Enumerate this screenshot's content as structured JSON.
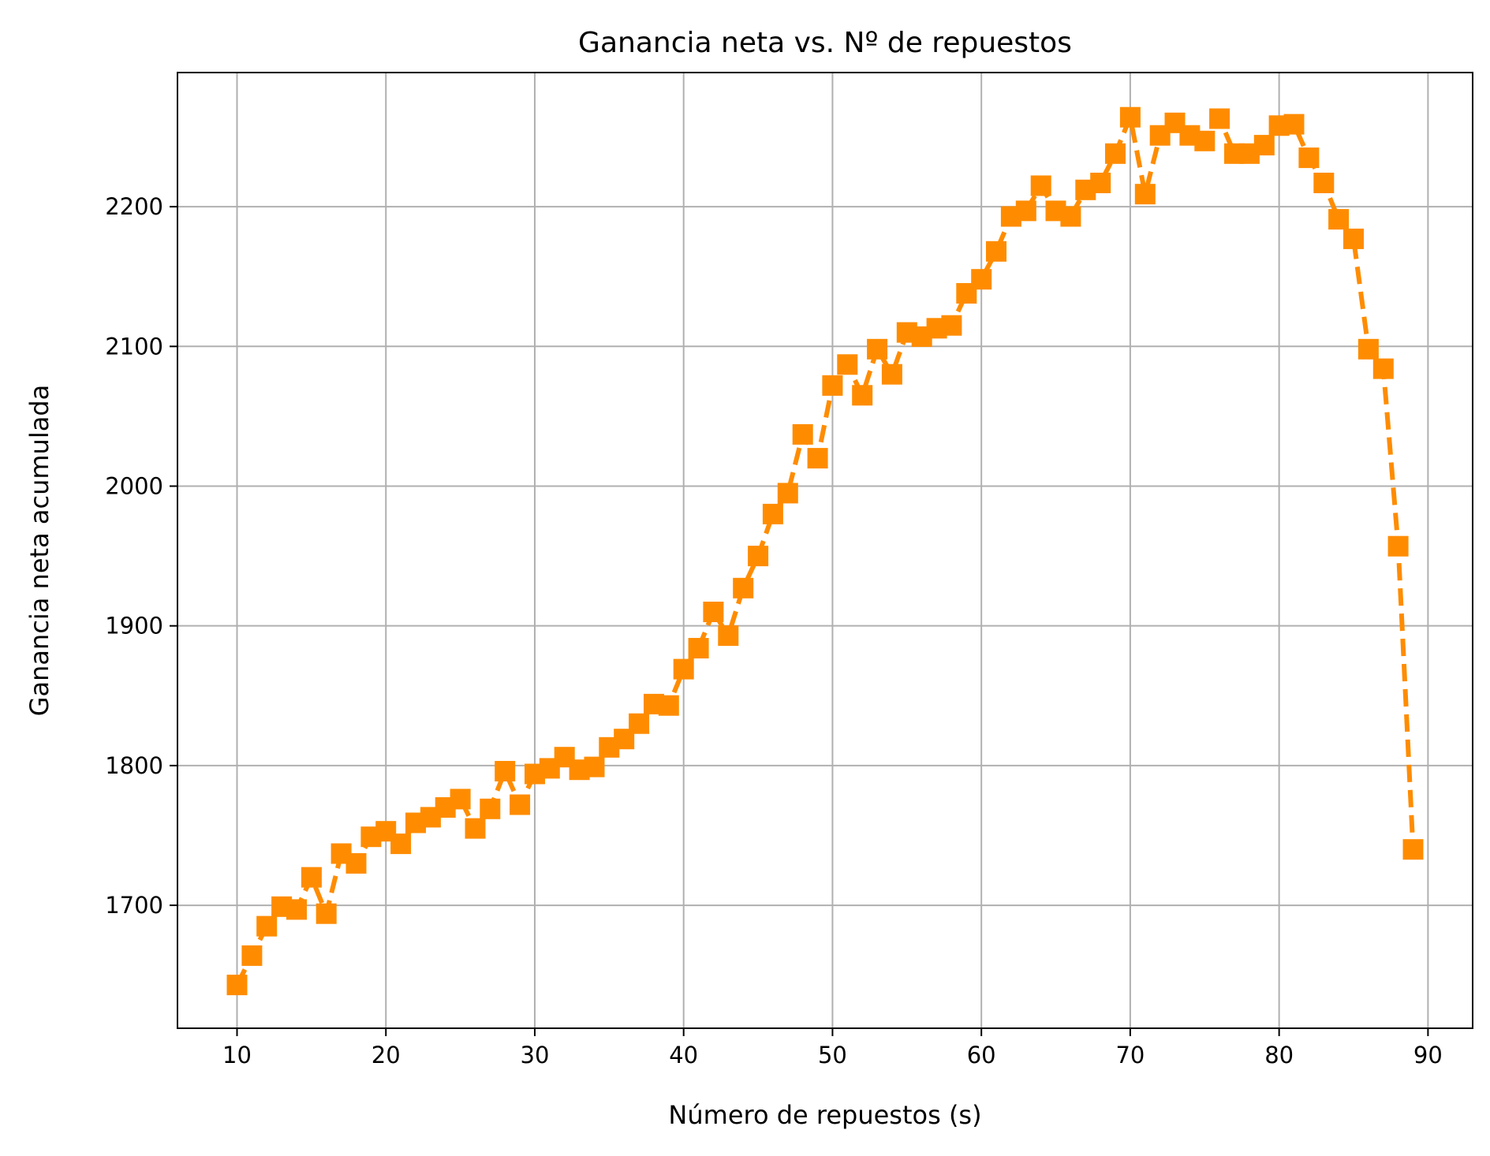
{
  "chart_data": {
    "type": "line",
    "title": "Ganancia neta vs. Nº de repuestos",
    "xlabel": "Número de repuestos (s)",
    "ylabel": "Ganancia neta acumulada",
    "xlim": [
      6,
      93
    ],
    "ylim": [
      1612,
      2296
    ],
    "xticks": [
      10,
      20,
      30,
      40,
      50,
      60,
      70,
      80,
      90
    ],
    "yticks": [
      1700,
      1800,
      1900,
      2000,
      2100,
      2200
    ],
    "grid": true,
    "legend": "none",
    "series": [
      {
        "color": "#ff8c00",
        "line_style": "dashed",
        "marker": "square",
        "x": [
          10,
          11,
          12,
          13,
          14,
          15,
          16,
          17,
          18,
          19,
          20,
          21,
          22,
          23,
          24,
          25,
          26,
          27,
          28,
          29,
          30,
          31,
          32,
          33,
          34,
          35,
          36,
          37,
          38,
          39,
          40,
          41,
          42,
          43,
          44,
          45,
          46,
          47,
          48,
          49,
          50,
          51,
          52,
          53,
          54,
          55,
          56,
          57,
          58,
          59,
          60,
          61,
          62,
          63,
          64,
          65,
          66,
          67,
          68,
          69,
          70,
          71,
          72,
          73,
          74,
          75,
          76,
          77,
          78,
          79,
          80,
          81,
          82,
          83,
          84,
          85,
          86,
          87,
          88,
          89
        ],
        "y": [
          1643,
          1664,
          1685,
          1699,
          1697,
          1720,
          1694,
          1737,
          1730,
          1749,
          1753,
          1744,
          1759,
          1763,
          1770,
          1776,
          1755,
          1769,
          1796,
          1772,
          1794,
          1798,
          1806,
          1797,
          1799,
          1813,
          1819,
          1830,
          1844,
          1843,
          1869,
          1884,
          1910,
          1893,
          1927,
          1950,
          1980,
          1995,
          2037,
          2020,
          2072,
          2087,
          2065,
          2098,
          2080,
          2110,
          2107,
          2113,
          2115,
          2138,
          2148,
          2168,
          2193,
          2197,
          2215,
          2197,
          2193,
          2212,
          2217,
          2238,
          2264,
          2209,
          2251,
          2260,
          2251,
          2247,
          2263,
          2238,
          2238,
          2244,
          2258,
          2259,
          2235,
          2217,
          2191,
          2177,
          2098,
          2084,
          1957,
          1740
        ]
      }
    ]
  }
}
